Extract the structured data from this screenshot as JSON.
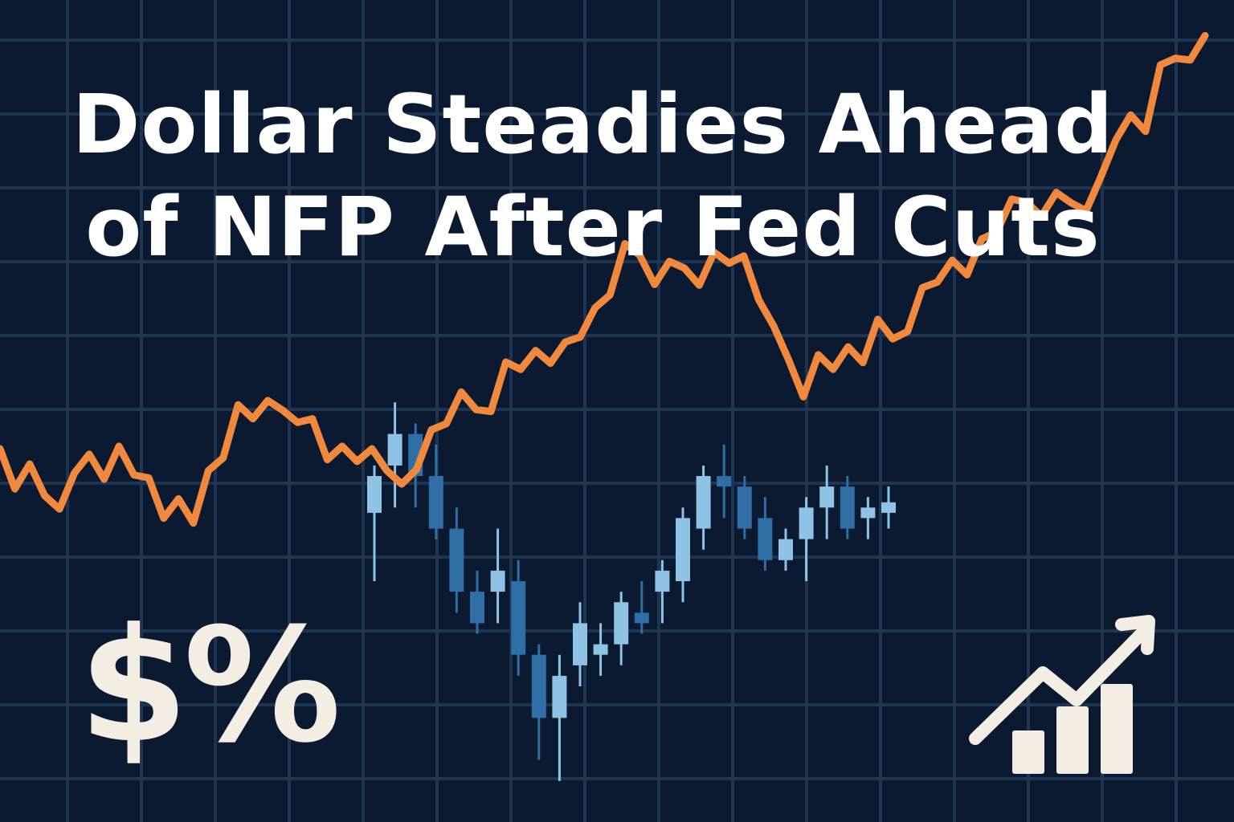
{
  "headline": {
    "line1": "Dollar Steadies Ahead",
    "line2": "of NFP After Fed Cuts"
  },
  "symbols": "$%",
  "icons": {
    "growth": "bar-chart-trend-up-icon"
  },
  "colors": {
    "background": "#0b1a30",
    "grid": "#1f3450",
    "line": "#f0883e",
    "candle_light": "#8fc3e6",
    "candle_dark": "#2f6fa6",
    "headline": "#ffffff",
    "accent_light": "#f4ede4"
  },
  "chart_data": [
    {
      "type": "line",
      "grid": true,
      "series": [
        {
          "values": [
            40.4,
            33.8,
            37.9,
            32.7,
            30.5,
            36.4,
            39.5,
            35.4,
            40.8,
            36.1,
            35.6,
            29.0,
            32.2,
            28.2,
            36.8,
            38.9,
            47.6,
            45.3,
            48.3,
            46.7,
            44.7,
            45.3,
            38.6,
            40.8,
            38.3,
            40.4,
            36.8,
            34.6,
            37.0,
            43.5,
            44.5,
            49.7,
            46.8,
            46.5,
            54.6,
            53.4,
            56.5,
            54.4,
            57.9,
            58.7,
            63.5,
            65.6,
            74.0,
            72.1,
            67.3,
            71.1,
            70.0,
            67.2,
            72.6,
            70.8,
            72.0,
            64.8,
            60.5,
            55.0,
            48.9,
            55.8,
            53.4,
            57.1,
            54.5,
            61.6,
            58.4,
            59.6,
            66.8,
            67.7,
            71.3,
            68.9,
            74.8,
            75.9,
            81.3,
            80.8,
            78.5,
            82.4,
            80.7,
            79.4,
            85.0,
            91.0,
            95.1,
            92.4,
            103.3,
            104.4,
            104.1,
            108.1
          ]
        }
      ]
    },
    {
      "type": "candlestick",
      "series": [
        {
          "candles": [
            {
              "o": 33,
              "h": 42,
              "l": 20,
              "c": 40
            },
            {
              "o": 42,
              "h": 54,
              "l": 34,
              "c": 48
            },
            {
              "o": 48,
              "h": 50,
              "l": 34,
              "c": 40
            },
            {
              "o": 40,
              "h": 46,
              "l": 28,
              "c": 30
            },
            {
              "o": 30,
              "h": 34,
              "l": 14,
              "c": 18
            },
            {
              "o": 18,
              "h": 22,
              "l": 10,
              "c": 12
            },
            {
              "o": 18,
              "h": 30,
              "l": 12,
              "c": 22
            },
            {
              "o": 20,
              "h": 24,
              "l": 2,
              "c": 6
            },
            {
              "o": 6,
              "h": 8,
              "l": -14,
              "c": -6
            },
            {
              "o": -6,
              "h": 6,
              "l": -18,
              "c": 2
            },
            {
              "o": 4,
              "h": 16,
              "l": 0,
              "c": 12
            },
            {
              "o": 6,
              "h": 12,
              "l": 2,
              "c": 8
            },
            {
              "o": 8,
              "h": 18,
              "l": 4,
              "c": 16
            },
            {
              "o": 14,
              "h": 20,
              "l": 10,
              "c": 12
            },
            {
              "o": 18,
              "h": 24,
              "l": 12,
              "c": 22
            },
            {
              "o": 20,
              "h": 34,
              "l": 16,
              "c": 32
            },
            {
              "o": 30,
              "h": 42,
              "l": 26,
              "c": 40
            },
            {
              "o": 40,
              "h": 46,
              "l": 32,
              "c": 38
            },
            {
              "o": 38,
              "h": 40,
              "l": 28,
              "c": 30
            },
            {
              "o": 32,
              "h": 36,
              "l": 22,
              "c": 24
            },
            {
              "o": 24,
              "h": 30,
              "l": 22,
              "c": 28
            },
            {
              "o": 28,
              "h": 36,
              "l": 20,
              "c": 34
            },
            {
              "o": 34,
              "h": 42,
              "l": 28,
              "c": 38
            },
            {
              "o": 38,
              "h": 40,
              "l": 28,
              "c": 30
            },
            {
              "o": 32,
              "h": 36,
              "l": 28,
              "c": 34
            },
            {
              "o": 33,
              "h": 38,
              "l": 30,
              "c": 35
            }
          ]
        }
      ]
    }
  ]
}
